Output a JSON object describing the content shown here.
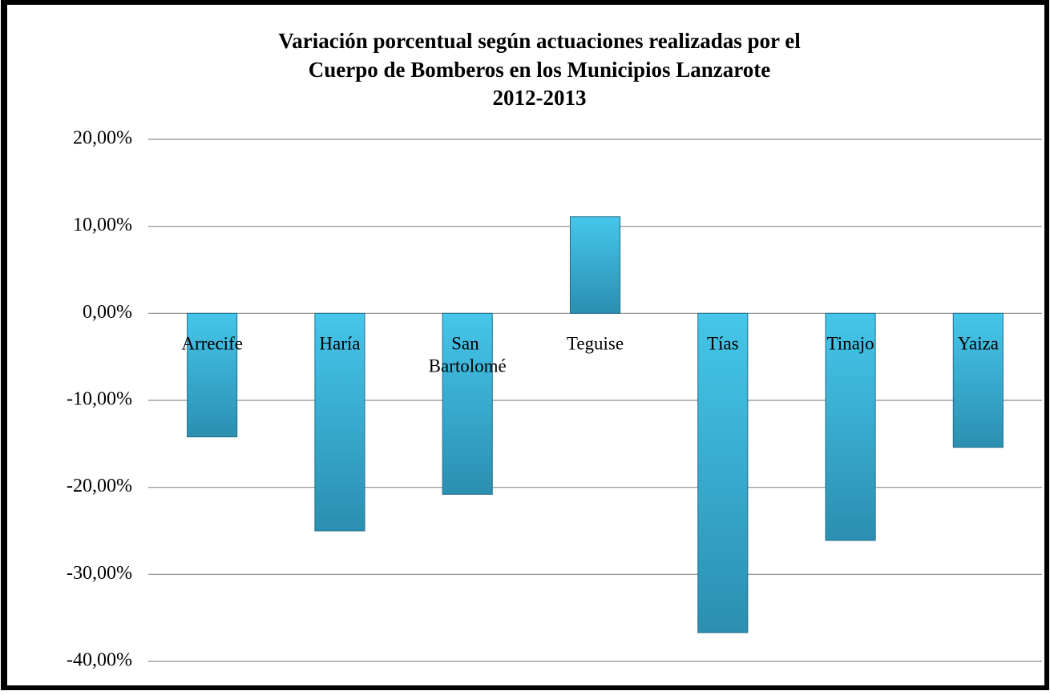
{
  "chart_data": {
    "type": "bar",
    "title": [
      "Variación porcentual según actuaciones realizadas por el",
      "Cuerpo de Bomberos en los Municipios Lanzarote",
      "2012-2013"
    ],
    "categories": [
      "Arrecife",
      "Haría",
      "San Bartolomé",
      "Teguise",
      "Tías",
      "Tinajo",
      "Yaiza"
    ],
    "values": [
      -14.2,
      -25.0,
      -20.8,
      11.1,
      -36.7,
      -26.1,
      -15.4
    ],
    "color": [
      "#45c6ea",
      "#2b8fb1"
    ],
    "ylim": [
      -40,
      20
    ],
    "yticks": [
      {
        "value": -40,
        "label": "-40,00%"
      },
      {
        "value": -30,
        "label": "-30,00%"
      },
      {
        "value": -20,
        "label": "-20,00%"
      },
      {
        "value": -10,
        "label": "-10,00%"
      },
      {
        "value": 0,
        "label": "0,00%"
      },
      {
        "value": 10,
        "label": "10,00%"
      },
      {
        "value": 20,
        "label": "20,00%"
      }
    ],
    "grid": true
  }
}
